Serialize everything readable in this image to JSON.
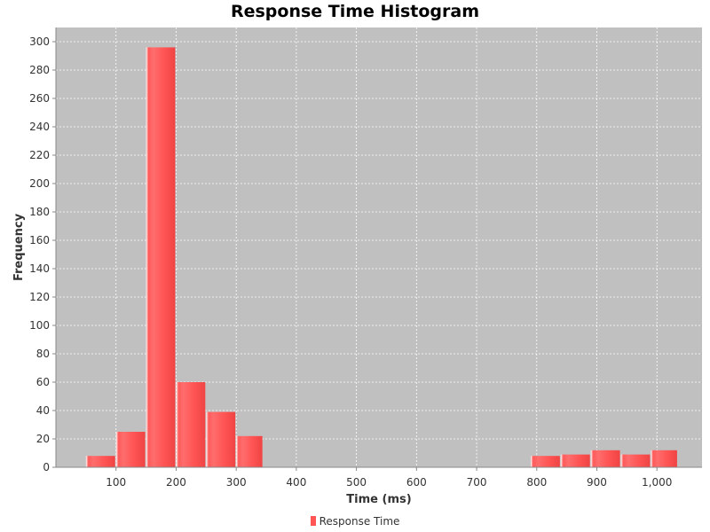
{
  "chart_data": {
    "type": "bar",
    "title": "Response Time Histogram",
    "xlabel": "Time (ms)",
    "ylabel": "Frequency",
    "xlim": [
      0,
      1075
    ],
    "ylim": [
      0,
      310
    ],
    "x_ticks": [
      100,
      200,
      300,
      400,
      500,
      600,
      700,
      800,
      900,
      1000
    ],
    "x_tick_labels": [
      "100",
      "200",
      "300",
      "400",
      "500",
      "600",
      "700",
      "800",
      "900",
      "1,000"
    ],
    "y_ticks": [
      0,
      20,
      40,
      60,
      80,
      100,
      120,
      140,
      160,
      180,
      200,
      220,
      240,
      260,
      280,
      300
    ],
    "grid": true,
    "legend_position": "bottom-center",
    "colors": {
      "bar": "#ff5555",
      "plot_background": "#c0c0c0",
      "grid": "#ffffff"
    },
    "series": [
      {
        "name": "Response Time",
        "bins": [
          {
            "start": 50,
            "end": 100,
            "value": 8
          },
          {
            "start": 100,
            "end": 150,
            "value": 25
          },
          {
            "start": 150,
            "end": 200,
            "value": 296
          },
          {
            "start": 200,
            "end": 250,
            "value": 60
          },
          {
            "start": 250,
            "end": 300,
            "value": 39
          },
          {
            "start": 300,
            "end": 345,
            "value": 22
          },
          {
            "start": 790,
            "end": 840,
            "value": 8
          },
          {
            "start": 840,
            "end": 890,
            "value": 9
          },
          {
            "start": 890,
            "end": 940,
            "value": 12
          },
          {
            "start": 940,
            "end": 990,
            "value": 9
          },
          {
            "start": 990,
            "end": 1035,
            "value": 12
          }
        ]
      }
    ]
  }
}
